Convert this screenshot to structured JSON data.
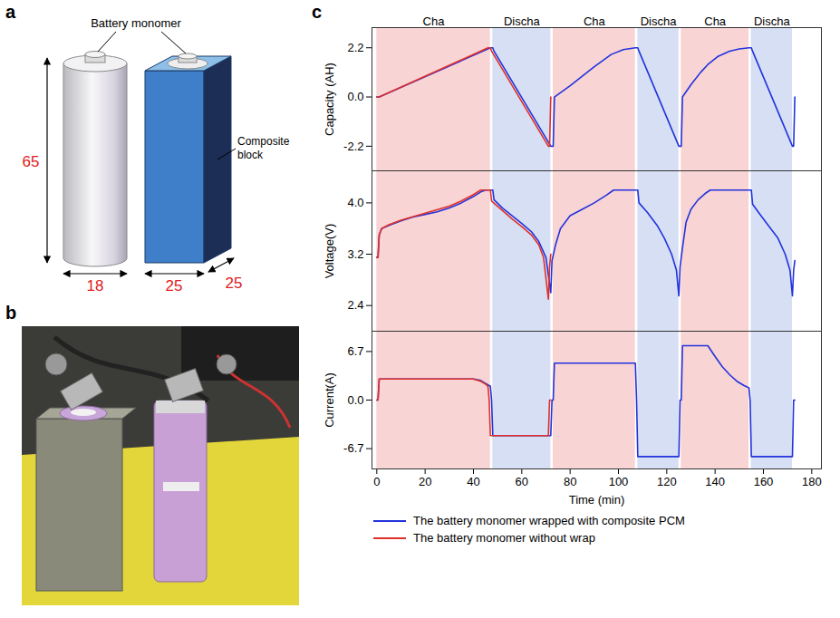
{
  "panel_a": {
    "letter": "a",
    "cell_label": "Battery monomer",
    "block_label": "Composite block",
    "dimensions": {
      "cell_height": 65,
      "cell_diameter": 18,
      "block_width": 25,
      "block_depth": 25
    },
    "dimension_color": "#e02020"
  },
  "panel_b": {
    "letter": "b"
  },
  "panel_c": {
    "letter": "c",
    "phases": [
      {
        "label": "Cha",
        "start": 0,
        "end": 47,
        "color": "#f9d4d4"
      },
      {
        "label": "Discha",
        "start": 48,
        "end": 72,
        "color": "#d6dff3"
      },
      {
        "label": "Cha",
        "start": 73,
        "end": 107,
        "color": "#f9d4d4"
      },
      {
        "label": "Discha",
        "start": 108,
        "end": 125,
        "color": "#d6dff3"
      },
      {
        "label": "Cha",
        "start": 126,
        "end": 154,
        "color": "#f9d4d4"
      },
      {
        "label": "Discha",
        "start": 155,
        "end": 172,
        "color": "#d6dff3"
      }
    ]
  },
  "chart_data": [
    {
      "type": "line",
      "y_label": "Capacity (AH)",
      "xlim": [
        -2,
        184
      ],
      "ylim": [
        -3.3,
        3.1
      ],
      "yticks": [
        -2.2,
        {
          "value": 0,
          "label": "0.0"
        },
        2.2
      ],
      "tick_labels": "y",
      "series": [
        {
          "color": "#2233dd",
          "x": [
            0,
            1,
            47,
            48,
            48.5,
            72,
            73,
            73.5,
            80,
            90,
            97,
            102,
            107,
            108,
            108.5,
            125,
            126,
            126.5,
            130,
            134,
            137,
            141,
            146,
            150,
            154,
            155,
            155.5,
            172,
            172.5,
            173
          ],
          "values": [
            0,
            0,
            2.2,
            2.2,
            2.05,
            -2.2,
            -2.2,
            0,
            0.5,
            1.35,
            1.9,
            2.12,
            2.2,
            2.2,
            2.05,
            -2.2,
            -2.2,
            0,
            0.55,
            1.1,
            1.45,
            1.8,
            2.05,
            2.15,
            2.2,
            2.2,
            2.05,
            -2.2,
            -2.2,
            0
          ]
        },
        {
          "color": "#e0302a",
          "x": [
            0,
            1,
            46,
            47,
            47.5,
            71,
            71.5,
            72
          ],
          "values": [
            0,
            0,
            2.2,
            2.2,
            2.05,
            -2.2,
            -2.2,
            0
          ]
        }
      ]
    },
    {
      "type": "line",
      "y_label": "Voltage(V)",
      "xlim": [
        -2,
        184
      ],
      "ylim": [
        2.0,
        4.5
      ],
      "yticks": [
        2.4,
        3.2,
        {
          "value": 4,
          "label": "4.0"
        }
      ],
      "tick_labels": "y",
      "series": [
        {
          "color": "#2233dd",
          "x": [
            0,
            0.5,
            1,
            2,
            5,
            10,
            15,
            20,
            25,
            30,
            35,
            40,
            43,
            45,
            48,
            48.5,
            52,
            56,
            60,
            64,
            67,
            70,
            72,
            72.5,
            74,
            76,
            80,
            85,
            90,
            95,
            98,
            108,
            108.5,
            112,
            116,
            119,
            122,
            124,
            125,
            125.5,
            126.5,
            128,
            130,
            133,
            136,
            138,
            155,
            155.5,
            158,
            162,
            166,
            169,
            171,
            172,
            172.5,
            173
          ],
          "values": [
            3.15,
            3.15,
            3.5,
            3.6,
            3.65,
            3.72,
            3.78,
            3.82,
            3.86,
            3.92,
            4.0,
            4.1,
            4.17,
            4.2,
            4.2,
            4.05,
            3.92,
            3.8,
            3.68,
            3.55,
            3.4,
            3.15,
            2.6,
            3.1,
            3.35,
            3.6,
            3.8,
            3.9,
            4.0,
            4.12,
            4.2,
            4.2,
            4.0,
            3.85,
            3.65,
            3.45,
            3.2,
            2.95,
            2.55,
            3.0,
            3.3,
            3.7,
            3.9,
            4.05,
            4.15,
            4.2,
            4.2,
            3.98,
            3.85,
            3.65,
            3.45,
            3.2,
            2.95,
            2.55,
            2.95,
            3.1
          ]
        },
        {
          "color": "#e0302a",
          "x": [
            0,
            0.5,
            1,
            2,
            5,
            10,
            20,
            30,
            35,
            40,
            43,
            47,
            47.5,
            52,
            56,
            60,
            64,
            67,
            69,
            71,
            71.5,
            72
          ],
          "values": [
            3.15,
            3.15,
            3.5,
            3.6,
            3.66,
            3.73,
            3.84,
            3.95,
            4.03,
            4.13,
            4.2,
            4.2,
            4.03,
            3.88,
            3.75,
            3.63,
            3.5,
            3.35,
            3.15,
            2.5,
            3.0,
            3.2
          ]
        }
      ]
    },
    {
      "type": "line",
      "y_label": "Current(A)",
      "x_label": "Time (min)",
      "xlim": [
        -2,
        184
      ],
      "xticks": [
        0,
        20,
        40,
        60,
        80,
        100,
        120,
        140,
        160,
        180
      ],
      "ylim": [
        -9.5,
        9.5
      ],
      "yticks": [
        -6.7,
        {
          "value": 0,
          "label": "0.0"
        },
        6.7
      ],
      "legend": "bottom",
      "series": [
        {
          "name": "The battery monomer wrapped with composite PCM",
          "color": "#2233dd",
          "x": [
            0,
            0.5,
            1,
            40,
            43,
            45,
            47,
            47.5,
            48,
            72,
            72.5,
            73,
            73.5,
            107,
            107.5,
            108,
            125,
            125.5,
            126,
            126.5,
            137,
            140,
            143,
            146,
            149,
            152,
            154,
            154.5,
            155,
            172,
            172.5,
            173
          ],
          "values": [
            0,
            0,
            2.9,
            2.9,
            2.7,
            2.3,
            1.9,
            0,
            -4.9,
            -4.9,
            0,
            0,
            5.1,
            5.1,
            0,
            -7.8,
            -7.8,
            0,
            0,
            7.5,
            7.5,
            6.0,
            4.6,
            3.5,
            2.6,
            2.0,
            1.7,
            0,
            -7.8,
            -7.8,
            0,
            0
          ]
        },
        {
          "name": "The battery monomer without wrap",
          "color": "#e0302a",
          "x": [
            0,
            0.5,
            1,
            40,
            43,
            45,
            46,
            46.5,
            47,
            71,
            71.5,
            72
          ],
          "values": [
            0,
            0,
            2.9,
            2.9,
            2.6,
            2.2,
            1.9,
            0,
            -4.9,
            -4.9,
            0,
            0
          ]
        }
      ]
    }
  ]
}
